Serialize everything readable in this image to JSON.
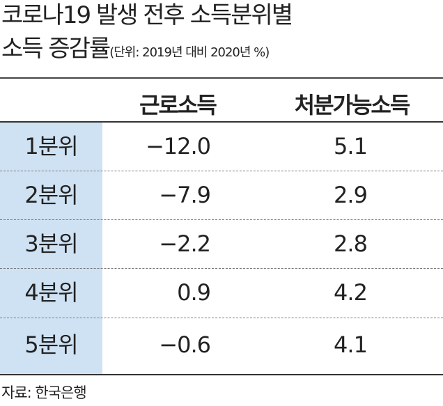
{
  "header": {
    "title_line1": "코로나19 발생 전후 소득분위별",
    "title_line2": "소득 증감률",
    "unit": "(단위: 2019년 대비 2020년 %)"
  },
  "table": {
    "columns": [
      "근로소득",
      "처분가능소득"
    ],
    "rows": [
      [
        "1분위",
        "−12.0",
        "5.1"
      ],
      [
        "2분위",
        "−7.9",
        "2.9"
      ],
      [
        "3분위",
        "−2.2",
        "2.8"
      ],
      [
        "4분위",
        "0.9",
        "4.2"
      ],
      [
        "5분위",
        "−0.6",
        "4.1"
      ]
    ]
  },
  "footer": {
    "source": "자료: 한국은행"
  }
}
